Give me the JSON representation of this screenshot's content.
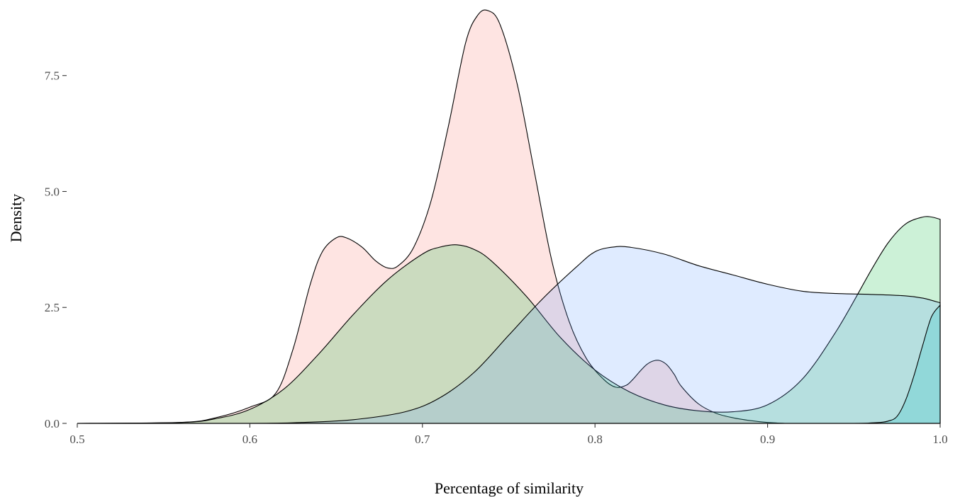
{
  "chart_data": {
    "type": "area",
    "subtype": "density",
    "xlabel": "Percentage of similarity",
    "ylabel": "Density",
    "xlim": [
      0.5,
      1.0
    ],
    "ylim": [
      0.0,
      8.9
    ],
    "x_ticks": [
      {
        "value": 0.5,
        "label": "0.5"
      },
      {
        "value": 0.6,
        "label": "0.6"
      },
      {
        "value": 0.7,
        "label": "0.7"
      },
      {
        "value": 0.8,
        "label": "0.8"
      },
      {
        "value": 0.9,
        "label": "0.9"
      },
      {
        "value": 1.0,
        "label": "1.0"
      }
    ],
    "y_ticks": [
      {
        "value": 0.0,
        "label": "0.0"
      },
      {
        "value": 2.5,
        "label": "2.5"
      },
      {
        "value": 5.0,
        "label": "5.0"
      },
      {
        "value": 7.5,
        "label": "7.5"
      }
    ],
    "grid": false,
    "legend": "none",
    "series": [
      {
        "color": "#F8766D",
        "x": [
          0.5,
          0.56,
          0.58,
          0.6,
          0.615,
          0.625,
          0.635,
          0.642,
          0.65,
          0.656,
          0.665,
          0.673,
          0.68,
          0.686,
          0.695,
          0.705,
          0.715,
          0.725,
          0.732,
          0.738,
          0.745,
          0.755,
          0.765,
          0.775,
          0.785,
          0.795,
          0.805,
          0.812,
          0.818,
          0.822,
          0.826,
          0.83,
          0.834,
          0.838,
          0.842,
          0.846,
          0.85,
          0.86,
          0.87,
          0.88,
          0.89,
          0.9,
          0.91
        ],
        "y": [
          0.0,
          0.02,
          0.12,
          0.35,
          0.65,
          1.6,
          3.0,
          3.7,
          4.0,
          4.0,
          3.8,
          3.5,
          3.35,
          3.4,
          3.8,
          4.8,
          6.4,
          8.2,
          8.8,
          8.9,
          8.6,
          7.3,
          5.4,
          3.5,
          2.2,
          1.4,
          0.95,
          0.78,
          0.82,
          0.95,
          1.12,
          1.27,
          1.35,
          1.35,
          1.25,
          1.05,
          0.8,
          0.42,
          0.22,
          0.12,
          0.06,
          0.02,
          0.0
        ]
      },
      {
        "color": "#00BA38",
        "x": [
          0.5,
          0.56,
          0.58,
          0.6,
          0.62,
          0.64,
          0.66,
          0.68,
          0.7,
          0.71,
          0.72,
          0.73,
          0.74,
          0.76,
          0.78,
          0.8,
          0.82,
          0.84,
          0.86,
          0.88,
          0.9,
          0.92,
          0.94,
          0.96,
          0.97,
          0.98,
          0.99,
          0.995,
          1.0
        ],
        "y": [
          0.0,
          0.02,
          0.1,
          0.3,
          0.75,
          1.5,
          2.35,
          3.1,
          3.65,
          3.8,
          3.85,
          3.75,
          3.5,
          2.75,
          1.85,
          1.15,
          0.68,
          0.4,
          0.27,
          0.25,
          0.4,
          0.95,
          2.0,
          3.3,
          3.9,
          4.3,
          4.45,
          4.45,
          4.4
        ]
      },
      {
        "color": "#619CFF",
        "x": [
          0.5,
          0.6,
          0.63,
          0.66,
          0.69,
          0.71,
          0.73,
          0.75,
          0.77,
          0.79,
          0.8,
          0.81,
          0.82,
          0.84,
          0.86,
          0.88,
          0.9,
          0.92,
          0.94,
          0.96,
          0.98,
          0.99,
          1.0
        ],
        "y": [
          0.0,
          0.0,
          0.02,
          0.08,
          0.25,
          0.55,
          1.1,
          1.9,
          2.7,
          3.4,
          3.7,
          3.8,
          3.8,
          3.65,
          3.4,
          3.2,
          3.0,
          2.85,
          2.8,
          2.78,
          2.75,
          2.7,
          2.6
        ]
      },
      {
        "color": "#00BFC4",
        "x": [
          0.5,
          0.9,
          0.95,
          0.96,
          0.965,
          0.97,
          0.975,
          0.98,
          0.985,
          0.99,
          0.995,
          1.0
        ],
        "y": [
          0.0,
          0.0,
          0.0,
          0.01,
          0.02,
          0.05,
          0.15,
          0.5,
          1.05,
          1.7,
          2.3,
          2.55
        ]
      }
    ]
  }
}
